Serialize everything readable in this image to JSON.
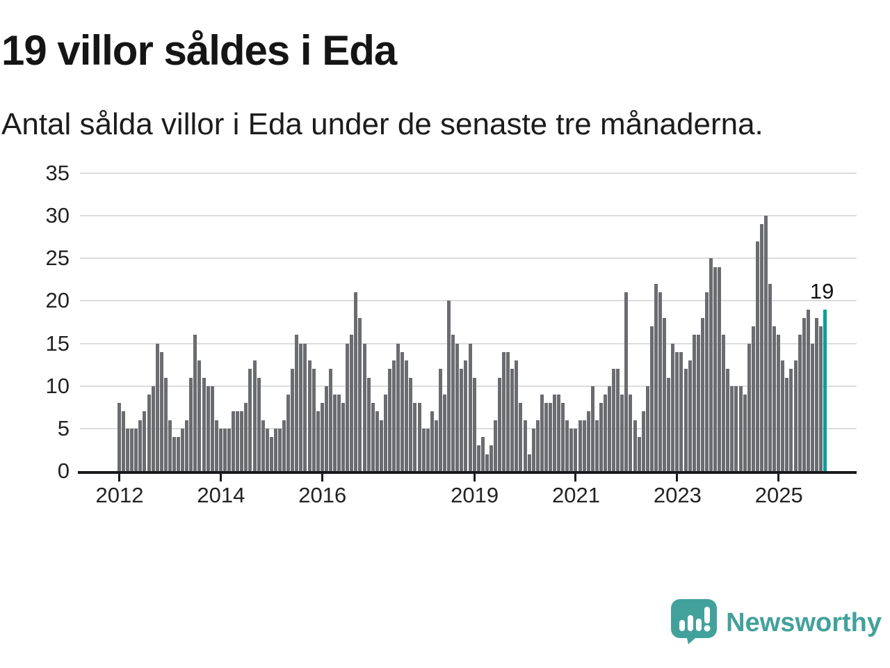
{
  "title": "19 villor såldes i Eda",
  "subtitle": "Antal sålda villor i Eda under de senaste tre månaderna.",
  "annotation_label": "19",
  "branding": {
    "logo_text": "Newsworthy",
    "logo_color": "#43a19c"
  },
  "chart_data": {
    "type": "bar",
    "title": "19 villor såldes i Eda",
    "subtitle": "Antal sålda villor i Eda under de senaste tre månaderna.",
    "ylabel": "",
    "xlabel": "",
    "ylim": [
      0,
      35
    ],
    "yticks": [
      0,
      5,
      10,
      15,
      20,
      25,
      30,
      35
    ],
    "grid": "horizontal",
    "bar_color": "#6b6c70",
    "highlight_color": "#00a19c",
    "highlight_last_bar": true,
    "highlight_value_label": "19",
    "x_start_year": 2012,
    "x_year_ticks": [
      {
        "label": "2012",
        "month_index": 0
      },
      {
        "label": "2014",
        "month_index": 24
      },
      {
        "label": "2016",
        "month_index": 48
      },
      {
        "label": "2019",
        "month_index": 84
      },
      {
        "label": "2021",
        "month_index": 108
      },
      {
        "label": "2023",
        "month_index": 132
      },
      {
        "label": "2025",
        "month_index": 156
      }
    ],
    "values": [
      8,
      7,
      5,
      5,
      5,
      6,
      7,
      9,
      10,
      15,
      14,
      11,
      6,
      4,
      4,
      5,
      6,
      11,
      16,
      13,
      11,
      10,
      10,
      6,
      5,
      5,
      5,
      7,
      7,
      7,
      8,
      12,
      13,
      11,
      6,
      5,
      4,
      5,
      5,
      6,
      9,
      12,
      16,
      15,
      15,
      13,
      12,
      7,
      8,
      10,
      12,
      9,
      9,
      8,
      15,
      16,
      21,
      18,
      15,
      11,
      8,
      7,
      6,
      9,
      12,
      13,
      15,
      14,
      13,
      11,
      8,
      8,
      5,
      5,
      7,
      6,
      12,
      9,
      20,
      16,
      15,
      12,
      13,
      15,
      11,
      3,
      4,
      2,
      3,
      6,
      11,
      14,
      14,
      12,
      13,
      8,
      6,
      2,
      5,
      6,
      9,
      8,
      8,
      9,
      9,
      8,
      6,
      5,
      5,
      6,
      6,
      7,
      10,
      6,
      8,
      9,
      10,
      12,
      12,
      9,
      21,
      9,
      6,
      4,
      7,
      10,
      17,
      22,
      21,
      18,
      11,
      15,
      14,
      14,
      12,
      13,
      16,
      16,
      18,
      21,
      25,
      24,
      24,
      16,
      12,
      10,
      10,
      10,
      9,
      15,
      17,
      27,
      29,
      30,
      22,
      17,
      16,
      13,
      11,
      12,
      13,
      16,
      18,
      19,
      15,
      18,
      17,
      19
    ]
  }
}
